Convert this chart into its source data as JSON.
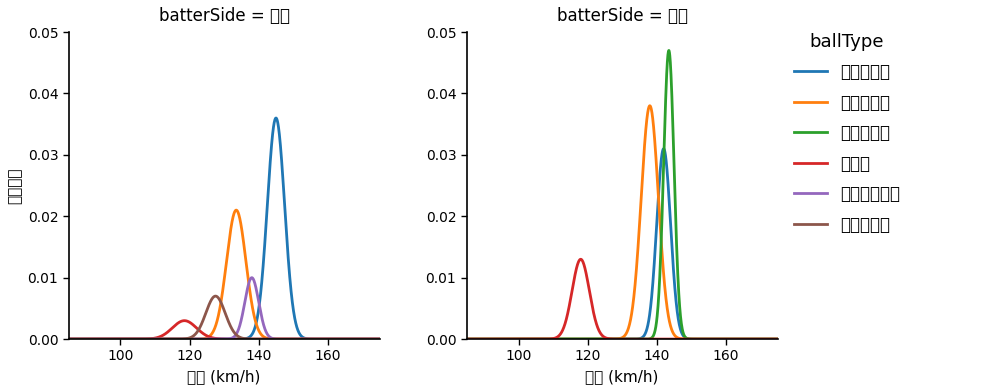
{
  "title_left": "batterSide = 左打",
  "title_right": "batterSide = 右打",
  "xlabel": "球速 (km/h)",
  "ylabel": "確率密度",
  "xlim": [
    85,
    175
  ],
  "ylim": [
    0,
    0.05
  ],
  "yticks": [
    0.0,
    0.01,
    0.02,
    0.03,
    0.04,
    0.05
  ],
  "xticks": [
    100,
    120,
    140,
    160
  ],
  "legend_title": "ballType",
  "ball_types": [
    "ストレート",
    "スプリット",
    "ツーシーム",
    "カーブ",
    "カットボール",
    "スライダー"
  ],
  "colors": [
    "#1f77b4",
    "#ff7f0e",
    "#2ca02c",
    "#d62728",
    "#9467bd",
    "#8c564b"
  ],
  "left_panels": {
    "ストレート": {
      "mean": 145.0,
      "std": 2.5,
      "peak": 0.036
    },
    "スプリット": {
      "mean": 133.5,
      "std": 2.8,
      "peak": 0.021
    },
    "ツーシーム": null,
    "カーブ": {
      "mean": 118.5,
      "std": 3.5,
      "peak": 0.003
    },
    "カットボール": {
      "mean": 138.0,
      "std": 2.0,
      "peak": 0.01
    },
    "スライダー": {
      "mean": 127.5,
      "std": 2.8,
      "peak": 0.007
    }
  },
  "right_panels": {
    "ストレート": {
      "mean": 142.0,
      "std": 2.0,
      "peak": 0.031
    },
    "スプリット": {
      "mean": 138.0,
      "std": 2.5,
      "peak": 0.038
    },
    "ツーシーム": {
      "mean": 143.5,
      "std": 1.5,
      "peak": 0.047
    },
    "カーブ": {
      "mean": 118.0,
      "std": 2.5,
      "peak": 0.013
    },
    "カットボール": null,
    "スライダー": null
  },
  "background_color": "#ffffff",
  "figsize": [
    9.97,
    3.91
  ],
  "dpi": 100
}
